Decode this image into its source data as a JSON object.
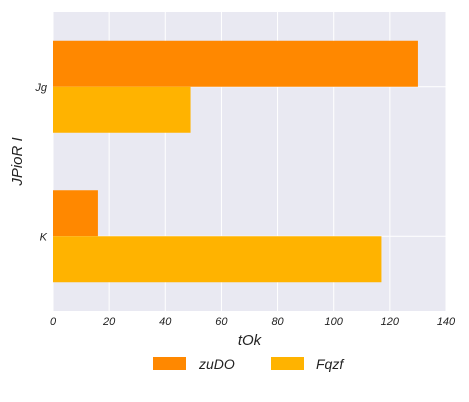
{
  "chart_data": {
    "type": "bar",
    "orientation": "horizontal",
    "categories": [
      "Jg",
      "K"
    ],
    "series": [
      {
        "name": "zuDO",
        "values": [
          130,
          16
        ],
        "color": "#FF8800"
      },
      {
        "name": "Fqzf",
        "values": [
          49,
          117
        ],
        "color": "#FFB300"
      }
    ],
    "xlabel": "tOk",
    "ylabel": "JPioR I",
    "xlim": [
      0,
      140
    ],
    "xticks": [
      "0",
      "20",
      "40",
      "60",
      "80",
      "100",
      "120",
      "140"
    ],
    "grid": true,
    "legend_position": "bottom-center",
    "background": "#E9E9F2"
  }
}
